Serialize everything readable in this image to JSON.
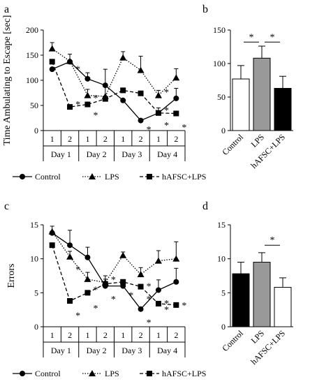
{
  "panels": {
    "a": "a",
    "b": "b",
    "c": "c",
    "d": "d"
  },
  "chart_data": [
    {
      "id": "a",
      "type": "line",
      "ylabel": "Time Ambulating to Escape [sec]",
      "ylim": [
        0,
        200
      ],
      "yticks": [
        "0",
        "50",
        "100",
        "150",
        "200"
      ],
      "sessions": [
        "1",
        "2",
        "1",
        "2",
        "1",
        "2",
        "1",
        "2"
      ],
      "days": [
        "Day 1",
        "Day 2",
        "Day 3",
        "Day 4"
      ],
      "series": [
        {
          "name": "Control",
          "style": "solid",
          "marker": "circle",
          "values": [
            122,
            137,
            103,
            90,
            60,
            20,
            35,
            64
          ],
          "errors": [
            0,
            0,
            12,
            32,
            0,
            0,
            10,
            20
          ]
        },
        {
          "name": "LPS",
          "style": "dotted",
          "marker": "triangle",
          "values": [
            163,
            138,
            70,
            68,
            145,
            120,
            70,
            105
          ],
          "errors": [
            12,
            14,
            12,
            20,
            12,
            28,
            10,
            18
          ]
        },
        {
          "name": "hAFSC+LPS",
          "style": "dashed",
          "marker": "square",
          "values": [
            137,
            47,
            52,
            63,
            80,
            74,
            35,
            34
          ],
          "errors": [
            0,
            0,
            0,
            0,
            0,
            0,
            0,
            0
          ]
        }
      ],
      "stars": [
        {
          "x": 1,
          "y": 130
        },
        {
          "x": 1,
          "y": 60
        },
        {
          "x": 2,
          "y": 72
        },
        {
          "x": 2,
          "y": 38
        },
        {
          "x": 5,
          "y": 10
        },
        {
          "x": 6,
          "y": 84
        },
        {
          "x": 6,
          "y": 48
        },
        {
          "x": 6,
          "y": 18
        },
        {
          "x": 7,
          "y": 14
        }
      ],
      "star_label": "*",
      "legend": [
        "Control",
        "LPS",
        "hAFSC+LPS"
      ]
    },
    {
      "id": "b",
      "type": "bar",
      "ylim": [
        0,
        150
      ],
      "yticks": [
        "0",
        "50",
        "100",
        "150"
      ],
      "categories": [
        "Control",
        "LPS",
        "hAFSC+LPS"
      ],
      "values": [
        77,
        108,
        63
      ],
      "errors": [
        20,
        18,
        18
      ],
      "colors": [
        "#ffffff",
        "#999999",
        "#000000"
      ],
      "brackets": [
        {
          "from": 0,
          "to": 1,
          "y": 132,
          "label": "*"
        },
        {
          "from": 1,
          "to": 2,
          "y": 132,
          "label": "*"
        }
      ]
    },
    {
      "id": "c",
      "type": "line",
      "ylabel": "Errors",
      "ylim": [
        0,
        15
      ],
      "yticks": [
        "0",
        "5",
        "10",
        "15"
      ],
      "sessions": [
        "1",
        "2",
        "1",
        "2",
        "1",
        "2",
        "1",
        "2"
      ],
      "days": [
        "Day 1",
        "Day 2",
        "Day 3",
        "Day 4"
      ],
      "series": [
        {
          "name": "Control",
          "style": "solid",
          "marker": "circle",
          "values": [
            13.8,
            12.0,
            10.2,
            6.0,
            6.0,
            2.6,
            5.4,
            6.6
          ],
          "errors": [
            0,
            2.2,
            1.5,
            1.0,
            0,
            0,
            1.5,
            2.0
          ]
        },
        {
          "name": "LPS",
          "style": "dotted",
          "marker": "triangle",
          "values": [
            14.0,
            10.3,
            7.0,
            6.5,
            10.5,
            7.7,
            9.7,
            10.0
          ],
          "errors": [
            0.8,
            0.8,
            1.0,
            1.0,
            0.5,
            1.0,
            1.5,
            2.5
          ]
        },
        {
          "name": "hAFSC+LPS",
          "style": "dashed",
          "marker": "square",
          "values": [
            12.0,
            3.8,
            5.0,
            6.3,
            6.6,
            5.9,
            3.4,
            3.2
          ],
          "errors": [
            0,
            0,
            0,
            0,
            0,
            0,
            0,
            0
          ]
        }
      ],
      "stars": [
        {
          "x": 1,
          "y": 9.0
        },
        {
          "x": 1,
          "y": 2.2
        },
        {
          "x": 2,
          "y": 6.0
        },
        {
          "x": 2,
          "y": 3.3
        },
        {
          "x": 3,
          "y": 7.5
        },
        {
          "x": 3,
          "y": 4.6
        },
        {
          "x": 4,
          "y": 5.2
        },
        {
          "x": 5,
          "y": 6.5
        },
        {
          "x": 5,
          "y": 4.6
        },
        {
          "x": 5,
          "y": 1.2
        },
        {
          "x": 6,
          "y": 4.0
        },
        {
          "x": 6,
          "y": 3.1
        },
        {
          "x": 7,
          "y": 3.7
        }
      ],
      "star_label": "*",
      "legend": [
        "Control",
        "LPS",
        "hAFSC+LPS"
      ]
    },
    {
      "id": "d",
      "type": "bar",
      "ylim": [
        0,
        15
      ],
      "yticks": [
        "0",
        "5",
        "10",
        "15"
      ],
      "categories": [
        "Control",
        "LPS",
        "hAFSC+LPS"
      ],
      "values": [
        7.8,
        9.5,
        5.8
      ],
      "errors": [
        1.7,
        1.4,
        1.4
      ],
      "colors": [
        "#000000",
        "#999999",
        "#ffffff"
      ],
      "brackets": [
        {
          "from": 1,
          "to": 2,
          "y": 12.0,
          "label": "*"
        }
      ]
    }
  ]
}
